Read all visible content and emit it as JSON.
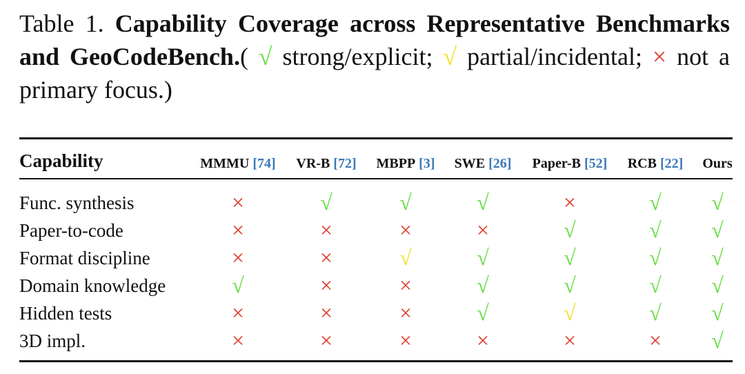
{
  "caption": {
    "parts": [
      {
        "text": "Table 1. ",
        "bold": false
      },
      {
        "text": "Capability Coverage across Representative Benchmarks and GeoCodeBench.",
        "bold": true
      },
      {
        "text": "( ",
        "bold": false
      },
      {
        "text": "√",
        "bold": false,
        "color": "#66dd44"
      },
      {
        "text": " strong/explicit; ",
        "bold": false
      },
      {
        "text": "√",
        "bold": false,
        "color": "#f2e033"
      },
      {
        "text": " partial/incidental; ",
        "bold": false
      },
      {
        "text": "×",
        "bold": false,
        "color": "#e03a2a"
      },
      {
        "text": " not a primary focus.)",
        "bold": false
      }
    ]
  },
  "table": {
    "corner": "Capability",
    "columns": [
      {
        "name": "MMMU",
        "ref": "[74]"
      },
      {
        "name": "VR-B",
        "ref": "[72]"
      },
      {
        "name": "MBPP",
        "ref": "[3]"
      },
      {
        "name": "SWE",
        "ref": "[26]"
      },
      {
        "name": "Paper-B",
        "ref": "[52]"
      },
      {
        "name": "RCB",
        "ref": "[22]"
      },
      {
        "name": "Ours"
      }
    ],
    "rows": [
      {
        "label": "Func. synthesis",
        "cells": [
          {
            "symbol": "×",
            "color": "#e03a2a"
          },
          {
            "symbol": "√",
            "color": "#66dd44"
          },
          {
            "symbol": "√",
            "color": "#66dd44"
          },
          {
            "symbol": "√",
            "color": "#66dd44"
          },
          {
            "symbol": "×",
            "color": "#e03a2a"
          },
          {
            "symbol": "√",
            "color": "#66dd44"
          },
          {
            "symbol": "√",
            "color": "#66dd44"
          }
        ]
      },
      {
        "label": "Paper-to-code",
        "cells": [
          {
            "symbol": "×",
            "color": "#e03a2a"
          },
          {
            "symbol": "×",
            "color": "#e03a2a"
          },
          {
            "symbol": "×",
            "color": "#e03a2a"
          },
          {
            "symbol": "×",
            "color": "#e03a2a"
          },
          {
            "symbol": "√",
            "color": "#66dd44"
          },
          {
            "symbol": "√",
            "color": "#66dd44"
          },
          {
            "symbol": "√",
            "color": "#66dd44"
          }
        ]
      },
      {
        "label": "Format discipline",
        "cells": [
          {
            "symbol": "×",
            "color": "#e03a2a"
          },
          {
            "symbol": "×",
            "color": "#e03a2a"
          },
          {
            "symbol": "√",
            "color": "#f2e033"
          },
          {
            "symbol": "√",
            "color": "#66dd44"
          },
          {
            "symbol": "√",
            "color": "#66dd44"
          },
          {
            "symbol": "√",
            "color": "#66dd44"
          },
          {
            "symbol": "√",
            "color": "#66dd44"
          }
        ]
      },
      {
        "label": "Domain knowledge",
        "cells": [
          {
            "symbol": "√",
            "color": "#66dd44"
          },
          {
            "symbol": "×",
            "color": "#e03a2a"
          },
          {
            "symbol": "×",
            "color": "#e03a2a"
          },
          {
            "symbol": "√",
            "color": "#66dd44"
          },
          {
            "symbol": "√",
            "color": "#66dd44"
          },
          {
            "symbol": "√",
            "color": "#66dd44"
          },
          {
            "symbol": "√",
            "color": "#66dd44"
          }
        ]
      },
      {
        "label": "Hidden tests",
        "cells": [
          {
            "symbol": "×",
            "color": "#e03a2a"
          },
          {
            "symbol": "×",
            "color": "#e03a2a"
          },
          {
            "symbol": "×",
            "color": "#e03a2a"
          },
          {
            "symbol": "√",
            "color": "#66dd44"
          },
          {
            "symbol": "√",
            "color": "#f2e033"
          },
          {
            "symbol": "√",
            "color": "#66dd44"
          },
          {
            "symbol": "√",
            "color": "#66dd44"
          }
        ]
      },
      {
        "label": "3D impl.",
        "cells": [
          {
            "symbol": "×",
            "color": "#e03a2a"
          },
          {
            "symbol": "×",
            "color": "#e03a2a"
          },
          {
            "symbol": "×",
            "color": "#e03a2a"
          },
          {
            "symbol": "×",
            "color": "#e03a2a"
          },
          {
            "symbol": "×",
            "color": "#e03a2a"
          },
          {
            "symbol": "×",
            "color": "#e03a2a"
          },
          {
            "symbol": "√",
            "color": "#66dd44"
          }
        ]
      }
    ]
  }
}
